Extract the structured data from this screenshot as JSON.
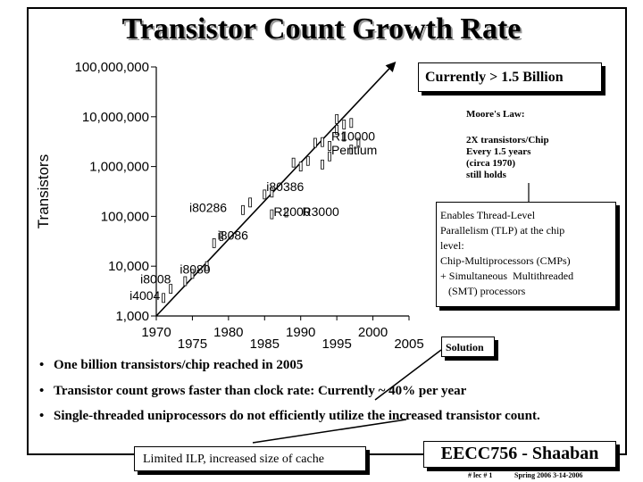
{
  "title": "Transistor Count Growth Rate",
  "callouts": {
    "currently": "Currently > 1.5 Billion",
    "moore_law_title": "Moore's Law:",
    "moore_law_lines": [
      "2X transistors/Chip",
      "Every 1.5 years",
      "(circa 1970)",
      "still holds"
    ],
    "tlp_lines": [
      "Enables Thread-Level",
      "Parallelism (TLP) at the chip",
      "level:",
      "Chip-Multiprocessors (CMPs)",
      "+ Simultaneous  Multithreaded",
      "   (SMT) processors"
    ],
    "solution": "Solution",
    "limited_ilp": "Limited ILP, increased size of cache"
  },
  "bullets": [
    "One billion transistors/chip reached in 2005",
    "Transistor count grows faster than clock rate: Currently  ~ 40% per year",
    "Single-threaded uniprocessors do not efficiently utilize the increased transistor count."
  ],
  "footer": {
    "course": "EECC756 - Shaaban",
    "lecture": "#  lec # 1",
    "date": "Spring 2006  3-14-2006"
  },
  "chart_data": {
    "type": "scatter",
    "ylabel": "Transistors",
    "xlim": [
      1970,
      2005
    ],
    "ylim": [
      1000,
      100000000
    ],
    "yscale": "log",
    "x_ticks_top": [
      1970,
      1980,
      1990,
      2000
    ],
    "x_ticks_bottom": [
      1975,
      1985,
      1995,
      2005
    ],
    "y_ticks": [
      {
        "value": 1000,
        "label": "1,000"
      },
      {
        "value": 10000,
        "label": "10,000"
      },
      {
        "value": 100000,
        "label": "100,000"
      },
      {
        "value": 1000000,
        "label": "1,000,000"
      },
      {
        "value": 10000000,
        "label": "10,000,000"
      },
      {
        "value": 100000000,
        "label": "100,000,000"
      }
    ],
    "labels": [
      {
        "text": "i4004",
        "x": 1971,
        "y": 2300
      },
      {
        "text": "i8008",
        "x": 1972,
        "y": 3500
      },
      {
        "text": "i8080",
        "x": 1974,
        "y": 6000
      },
      {
        "text": "i8086",
        "x": 1978,
        "y": 29000
      },
      {
        "text": "i80286",
        "x": 1982,
        "y": 134000
      },
      {
        "text": "i80386",
        "x": 1985,
        "y": 275000
      },
      {
        "text": "R2000",
        "x": 1986,
        "y": 110000
      },
      {
        "text": "R3000",
        "x": 1988,
        "y": 120000
      },
      {
        "text": "R10000",
        "x": 1994,
        "y": 2600000
      },
      {
        "text": "Pentium",
        "x": 1993,
        "y": 3100000
      }
    ],
    "points": [
      {
        "x": 1971,
        "y": 2300
      },
      {
        "x": 1972,
        "y": 3500
      },
      {
        "x": 1974,
        "y": 5000
      },
      {
        "x": 1975,
        "y": 7000
      },
      {
        "x": 1977,
        "y": 10000
      },
      {
        "x": 1978,
        "y": 29000
      },
      {
        "x": 1979,
        "y": 40000
      },
      {
        "x": 1982,
        "y": 134000
      },
      {
        "x": 1983,
        "y": 190000
      },
      {
        "x": 1985,
        "y": 275000
      },
      {
        "x": 1986,
        "y": 110000
      },
      {
        "x": 1986,
        "y": 300000
      },
      {
        "x": 1988,
        "y": 120000
      },
      {
        "x": 1989,
        "y": 1200000
      },
      {
        "x": 1990,
        "y": 1000000
      },
      {
        "x": 1991,
        "y": 1300000
      },
      {
        "x": 1992,
        "y": 3000000
      },
      {
        "x": 1993,
        "y": 3100000
      },
      {
        "x": 1993,
        "y": 1100000
      },
      {
        "x": 1994,
        "y": 2600000
      },
      {
        "x": 1994,
        "y": 1600000
      },
      {
        "x": 1995,
        "y": 5500000
      },
      {
        "x": 1995,
        "y": 9000000
      },
      {
        "x": 1996,
        "y": 4000000
      },
      {
        "x": 1996,
        "y": 7000000
      },
      {
        "x": 1997,
        "y": 7500000
      },
      {
        "x": 1997,
        "y": 2200000
      },
      {
        "x": 1998,
        "y": 3000000
      }
    ],
    "trend": {
      "x": [
        1970,
        2003
      ],
      "y": [
        1000,
        120000000
      ]
    }
  }
}
